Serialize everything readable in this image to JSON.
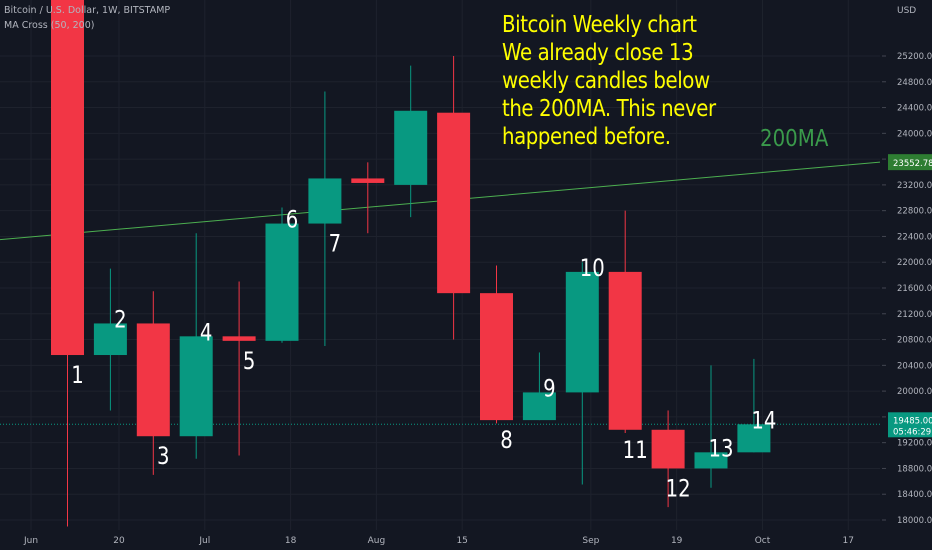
{
  "legend": {
    "symbol_line": "Bitcoin / U.S. Dollar, 1W, BITSTAMP",
    "indicator_line": "MA Cross (50, 200)"
  },
  "annotation": {
    "text": "Bitcoin Weekly chart\nWe already close 13\nweekly candles below\nthe 200MA. This never\nhappened before.",
    "ma_label": "200MA"
  },
  "colors": {
    "background": "#131722",
    "up": "#089981",
    "down": "#f23645",
    "ma200": "#4caf50",
    "annotation": "#ffff00",
    "axis_text": "#b2b5be"
  },
  "chart_data": {
    "type": "candlestick",
    "currency": "USD",
    "ylim": [
      17900,
      25500
    ],
    "yticks": [
      18000,
      18400,
      18800,
      19200,
      19600,
      20000,
      20400,
      20800,
      21200,
      21600,
      22000,
      22400,
      22800,
      23200,
      23600,
      24000,
      24400,
      24800,
      25200
    ],
    "ytick_labels": [
      "18000.00",
      "18400.00",
      "18800.00",
      "19200.00",
      "19600.00",
      "20000.00",
      "20400.00",
      "20800.00",
      "21200.00",
      "21600.00",
      "22000.00",
      "22400.00",
      "22800.00",
      "23200.00",
      "23600.00",
      "24000.00",
      "24400.00",
      "24800.00",
      "25200.00"
    ],
    "xtick_labels": [
      {
        "label": "Jun",
        "week": -0.85
      },
      {
        "label": "20",
        "week": 1.2
      },
      {
        "label": "Jul",
        "week": 3.2
      },
      {
        "label": "18",
        "week": 5.2
      },
      {
        "label": "Aug",
        "week": 7.2
      },
      {
        "label": "15",
        "week": 9.2
      },
      {
        "label": "Sep",
        "week": 12.2
      },
      {
        "label": "19",
        "week": 14.2
      },
      {
        "label": "Oct",
        "week": 16.2
      },
      {
        "label": "17",
        "week": 18.2
      }
    ],
    "candles": [
      {
        "label": "1",
        "open": 26500,
        "high": 26800,
        "low": 17900,
        "close": 20560
      },
      {
        "label": "2",
        "open": 20560,
        "high": 21900,
        "low": 19700,
        "close": 21050
      },
      {
        "label": "3",
        "open": 21050,
        "high": 21550,
        "low": 18700,
        "close": 19300
      },
      {
        "label": "4",
        "open": 19300,
        "high": 22450,
        "low": 18950,
        "close": 20850
      },
      {
        "label": "5",
        "open": 20850,
        "high": 21700,
        "low": 19000,
        "close": 20780
      },
      {
        "label": "6",
        "open": 20780,
        "high": 22850,
        "low": 20750,
        "close": 22600
      },
      {
        "label": "7",
        "open": 22600,
        "high": 24650,
        "low": 20700,
        "close": 23300
      },
      {
        "label": "",
        "open": 23300,
        "high": 23550,
        "low": 22450,
        "close": 23230
      },
      {
        "label": "",
        "open": 23200,
        "high": 25050,
        "low": 22700,
        "close": 24350
      },
      {
        "label": "",
        "open": 24320,
        "high": 25200,
        "low": 20800,
        "close": 21520
      },
      {
        "label": "8",
        "open": 21520,
        "high": 21950,
        "low": 19500,
        "close": 19550
      },
      {
        "label": "9",
        "open": 19550,
        "high": 20600,
        "low": 19550,
        "close": 19980
      },
      {
        "label": "10",
        "open": 19980,
        "high": 22000,
        "low": 18550,
        "close": 21850
      },
      {
        "label": "11",
        "open": 21850,
        "high": 22800,
        "low": 19350,
        "close": 19400
      },
      {
        "label": "12",
        "open": 19400,
        "high": 19700,
        "low": 18200,
        "close": 18800
      },
      {
        "label": "13",
        "open": 18800,
        "high": 20400,
        "low": 18500,
        "close": 19050
      },
      {
        "label": "14",
        "open": 19050,
        "high": 20500,
        "low": 19050,
        "close": 19485
      }
    ],
    "ma200": {
      "name": "200MA",
      "start": 22350,
      "end": 23552.78
    },
    "last_price": {
      "value": "19485.00",
      "countdown": "05:46:29"
    },
    "ma_price_label": "23552.78"
  }
}
